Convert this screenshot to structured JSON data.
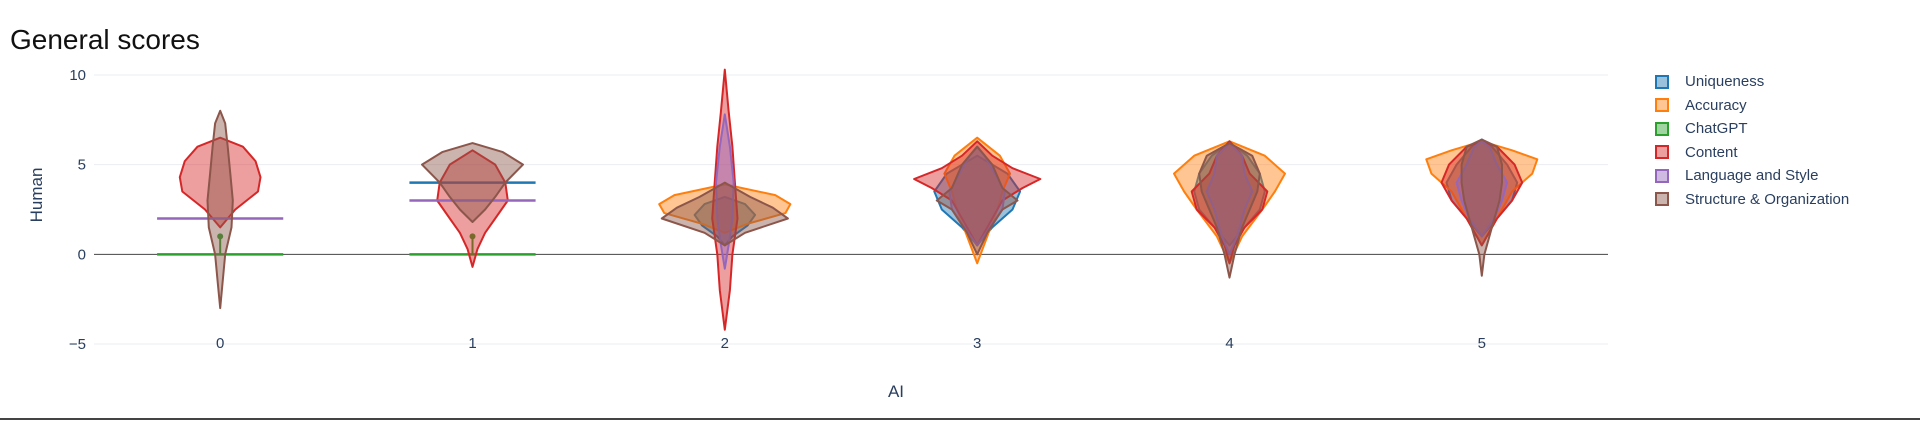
{
  "chart_data": {
    "type": "violin",
    "title": "General scores",
    "xlabel": "AI",
    "ylabel": "Human",
    "xlim": [
      -0.5,
      5.5
    ],
    "ylim": [
      -5,
      10.5
    ],
    "x_ticks": [
      0,
      1,
      2,
      3,
      4,
      5
    ],
    "y_ticks": [
      -5,
      0,
      5,
      10
    ],
    "y_tick_labels": [
      "−5",
      "0",
      "5",
      "10"
    ],
    "grid": true,
    "legend_position": "right",
    "series": [
      {
        "name": "Uniqueness",
        "color": "#1f77b4",
        "violins": [
          {
            "x": 0,
            "points": []
          },
          {
            "x": 1,
            "points": [
              [
                4,
                0.25
              ]
            ]
          },
          {
            "x": 2,
            "points": [
              [
                0.5,
                0
              ],
              [
                1,
                0.03
              ],
              [
                1.6,
                0.09
              ],
              [
                2.2,
                0.12
              ],
              [
                2.8,
                0.08
              ],
              [
                3.2,
                0
              ]
            ]
          },
          {
            "x": 3,
            "points": [
              [
                0.5,
                0
              ],
              [
                1.5,
                0.06
              ],
              [
                2.5,
                0.14
              ],
              [
                3.5,
                0.17
              ],
              [
                4.5,
                0.12
              ],
              [
                5.5,
                0
              ]
            ]
          },
          {
            "x": 4,
            "points": [
              [
                0.5,
                0
              ],
              [
                1.5,
                0.06
              ],
              [
                2.5,
                0.12
              ],
              [
                3.5,
                0.14
              ],
              [
                4.5,
                0.12
              ],
              [
                5.5,
                0.07
              ],
              [
                6.2,
                0
              ]
            ]
          },
          {
            "x": 5,
            "points": [
              [
                1,
                0
              ],
              [
                2,
                0.06
              ],
              [
                3,
                0.12
              ],
              [
                4,
                0.14
              ],
              [
                5,
                0.1
              ],
              [
                6,
                0.04
              ],
              [
                6.4,
                0
              ]
            ]
          }
        ]
      },
      {
        "name": "Accuracy",
        "color": "#ff7f0e",
        "violins": [
          {
            "x": 0,
            "points": []
          },
          {
            "x": 1,
            "points": []
          },
          {
            "x": 2,
            "points": [
              [
                1.2,
                0
              ],
              [
                1.7,
                0.09
              ],
              [
                2.3,
                0.24
              ],
              [
                2.8,
                0.26
              ],
              [
                3.3,
                0.2
              ],
              [
                3.9,
                0
              ]
            ]
          },
          {
            "x": 3,
            "points": [
              [
                -0.5,
                0
              ],
              [
                1,
                0.04
              ],
              [
                2.5,
                0.08
              ],
              [
                3.5,
                0.1
              ],
              [
                4.5,
                0.13
              ],
              [
                5.5,
                0.09
              ],
              [
                6.5,
                0
              ]
            ]
          },
          {
            "x": 4,
            "points": [
              [
                -0.5,
                0
              ],
              [
                1,
                0.05
              ],
              [
                2.5,
                0.13
              ],
              [
                3.5,
                0.18
              ],
              [
                4.5,
                0.22
              ],
              [
                5.5,
                0.14
              ],
              [
                6.3,
                0
              ]
            ]
          },
          {
            "x": 5,
            "points": [
              [
                0.5,
                0
              ],
              [
                2,
                0.06
              ],
              [
                3.5,
                0.12
              ],
              [
                4.5,
                0.2
              ],
              [
                5.3,
                0.22
              ],
              [
                5.8,
                0.12
              ],
              [
                6.3,
                0
              ]
            ]
          }
        ]
      },
      {
        "name": "ChatGPT",
        "color": "#2ca02c",
        "violins": [
          {
            "x": 0,
            "points": [
              [
                0,
                0.25
              ]
            ],
            "marker": 1
          },
          {
            "x": 1,
            "points": [
              [
                0,
                0.25
              ]
            ],
            "marker": 1
          }
        ]
      },
      {
        "name": "Content",
        "color": "#d62728",
        "violins": [
          {
            "x": 0,
            "points": [
              [
                1.5,
                0
              ],
              [
                2.5,
                0.06
              ],
              [
                3.5,
                0.15
              ],
              [
                4.3,
                0.16
              ],
              [
                5.2,
                0.14
              ],
              [
                6,
                0.09
              ],
              [
                6.5,
                0
              ]
            ]
          },
          {
            "x": 1,
            "points": [
              [
                -0.7,
                0
              ],
              [
                0.3,
                0.02
              ],
              [
                1.2,
                0.05
              ],
              [
                2,
                0.09
              ],
              [
                3,
                0.14
              ],
              [
                4,
                0.13
              ],
              [
                5,
                0.09
              ],
              [
                5.8,
                0
              ]
            ]
          },
          {
            "x": 2,
            "points": [
              [
                -4.2,
                0
              ],
              [
                -2,
                0.02
              ],
              [
                0,
                0.03
              ],
              [
                2,
                0.05
              ],
              [
                4,
                0.04
              ],
              [
                6,
                0.03
              ],
              [
                8,
                0.015
              ],
              [
                10.3,
                0
              ]
            ]
          },
          {
            "x": 3,
            "points": [
              [
                0.5,
                0
              ],
              [
                2,
                0.06
              ],
              [
                3,
                0.1
              ],
              [
                3.7,
                0.18
              ],
              [
                4.2,
                0.25
              ],
              [
                4.8,
                0.14
              ],
              [
                5.5,
                0.06
              ],
              [
                6.3,
                0
              ]
            ]
          },
          {
            "x": 4,
            "points": [
              [
                -0.5,
                0
              ],
              [
                0.5,
                0.02
              ],
              [
                1.5,
                0.06
              ],
              [
                2.5,
                0.13
              ],
              [
                3.5,
                0.15
              ],
              [
                4.5,
                0.08
              ],
              [
                5.5,
                0.05
              ],
              [
                6.3,
                0
              ]
            ]
          },
          {
            "x": 5,
            "points": [
              [
                0.5,
                0
              ],
              [
                2,
                0.06
              ],
              [
                3,
                0.12
              ],
              [
                4,
                0.16
              ],
              [
                5,
                0.13
              ],
              [
                6,
                0.06
              ],
              [
                6.3,
                0
              ]
            ]
          }
        ]
      },
      {
        "name": "Language and Style",
        "color": "#9467bd",
        "violins": [
          {
            "x": 0,
            "points": [
              [
                2,
                0.25
              ]
            ]
          },
          {
            "x": 1,
            "points": [
              [
                3,
                0.25
              ]
            ]
          },
          {
            "x": 2,
            "points": [
              [
                -0.8,
                0
              ],
              [
                0.5,
                0.015
              ],
              [
                2,
                0.03
              ],
              [
                4,
                0.035
              ],
              [
                6,
                0.02
              ],
              [
                7.8,
                0
              ]
            ]
          },
          {
            "x": 3,
            "points": [
              [
                0.5,
                0
              ],
              [
                1.5,
                0.05
              ],
              [
                2.5,
                0.1
              ],
              [
                3.5,
                0.11
              ],
              [
                4.5,
                0.07
              ],
              [
                5.5,
                0.03
              ],
              [
                6,
                0
              ]
            ]
          },
          {
            "x": 4,
            "points": [
              [
                0,
                0
              ],
              [
                1,
                0.03
              ],
              [
                2.5,
                0.06
              ],
              [
                3.5,
                0.09
              ],
              [
                4.5,
                0.06
              ],
              [
                5.5,
                0.05
              ],
              [
                6.2,
                0
              ]
            ]
          },
          {
            "x": 5,
            "points": [
              [
                1,
                0
              ],
              [
                2,
                0.05
              ],
              [
                3,
                0.08
              ],
              [
                4,
                0.1
              ],
              [
                5,
                0.06
              ],
              [
                6,
                0.03
              ],
              [
                6.3,
                0
              ]
            ]
          }
        ]
      },
      {
        "name": "Structure & Organization",
        "color": "#8c564b",
        "violins": [
          {
            "x": 0,
            "points": [
              [
                -3,
                0
              ],
              [
                -1.5,
                0.01
              ],
              [
                0,
                0.02
              ],
              [
                1.5,
                0.045
              ],
              [
                3,
                0.05
              ],
              [
                4.5,
                0.04
              ],
              [
                6,
                0.03
              ],
              [
                7.3,
                0.02
              ],
              [
                8,
                0
              ]
            ]
          },
          {
            "x": 1,
            "points": [
              [
                1.8,
                0
              ],
              [
                2.5,
                0.05
              ],
              [
                3.2,
                0.09
              ],
              [
                4,
                0.13
              ],
              [
                5,
                0.2
              ],
              [
                5.7,
                0.12
              ],
              [
                6.2,
                0
              ]
            ]
          },
          {
            "x": 2,
            "points": [
              [
                0.5,
                0
              ],
              [
                1.2,
                0.08
              ],
              [
                2,
                0.25
              ],
              [
                2.6,
                0.19
              ],
              [
                3.2,
                0.1
              ],
              [
                4,
                0
              ]
            ]
          },
          {
            "x": 3,
            "points": [
              [
                0,
                0
              ],
              [
                1.2,
                0.04
              ],
              [
                2.5,
                0.1
              ],
              [
                3,
                0.16
              ],
              [
                3.7,
                0.1
              ],
              [
                5,
                0.06
              ],
              [
                6,
                0
              ]
            ]
          },
          {
            "x": 4,
            "points": [
              [
                -1.3,
                0
              ],
              [
                0,
                0.02
              ],
              [
                1.5,
                0.05
              ],
              [
                2.5,
                0.08
              ],
              [
                3.5,
                0.11
              ],
              [
                4.5,
                0.12
              ],
              [
                5.5,
                0.09
              ],
              [
                6.2,
                0
              ]
            ]
          },
          {
            "x": 5,
            "points": [
              [
                -1.2,
                0
              ],
              [
                0,
                0.01
              ],
              [
                1.5,
                0.04
              ],
              [
                3,
                0.07
              ],
              [
                4,
                0.08
              ],
              [
                5,
                0.08
              ],
              [
                6,
                0.06
              ],
              [
                6.4,
                0
              ]
            ]
          }
        ]
      }
    ]
  }
}
